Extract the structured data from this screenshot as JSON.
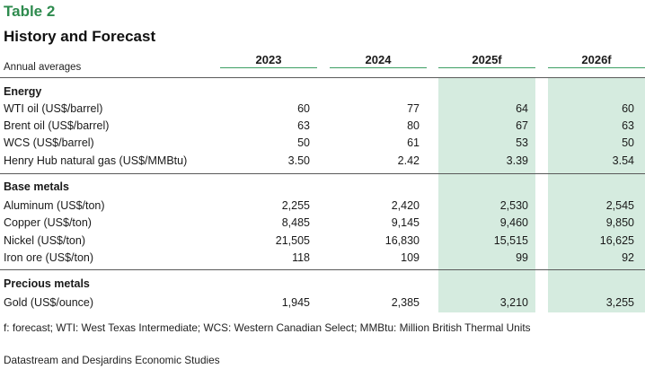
{
  "table_tag": "Table 2",
  "table_title": "History and Forecast",
  "units_label": "Annual averages",
  "columns": [
    "2023",
    "2024",
    "2025f",
    "2026f"
  ],
  "sections": [
    {
      "title": "Energy",
      "rows": [
        {
          "label": "WTI oil (US$/barrel)",
          "values": [
            "60",
            "77",
            "64",
            "60"
          ]
        },
        {
          "label": "Brent oil (US$/barrel)",
          "values": [
            "63",
            "80",
            "67",
            "63"
          ]
        },
        {
          "label": "WCS (US$/barrel)",
          "values": [
            "50",
            "61",
            "53",
            "50"
          ]
        },
        {
          "label": "Henry Hub natural gas (US$/MMBtu)",
          "values": [
            "3.50",
            "2.42",
            "3.39",
            "3.54"
          ]
        }
      ]
    },
    {
      "title": "Base metals",
      "rows": [
        {
          "label": "Aluminum (US$/ton)",
          "values": [
            "2,255",
            "2,420",
            "2,530",
            "2,545"
          ]
        },
        {
          "label": "Copper (US$/ton)",
          "values": [
            "8,485",
            "9,145",
            "9,460",
            "9,850"
          ]
        },
        {
          "label": "Nickel (US$/ton)",
          "values": [
            "21,505",
            "16,830",
            "15,515",
            "16,625"
          ]
        },
        {
          "label": "Iron ore (US$/ton)",
          "values": [
            "118",
            "109",
            "99",
            "92"
          ]
        }
      ]
    },
    {
      "title": "Precious metals",
      "rows": [
        {
          "label": "Gold (US$/ounce)",
          "values": [
            "1,945",
            "2,385",
            "3,210",
            "3,255"
          ]
        }
      ]
    }
  ],
  "footnote": "f: forecast; WTI: West Texas Intermediate; WCS: Western Canadian Select; MMBtu: Million British Thermal Units",
  "source": "Datastream and Desjardins Economic Studies",
  "colors": {
    "accent": "#2e8b4e",
    "forecast_shading": "#d5ebdf",
    "header_rule": "#3d9e63"
  }
}
